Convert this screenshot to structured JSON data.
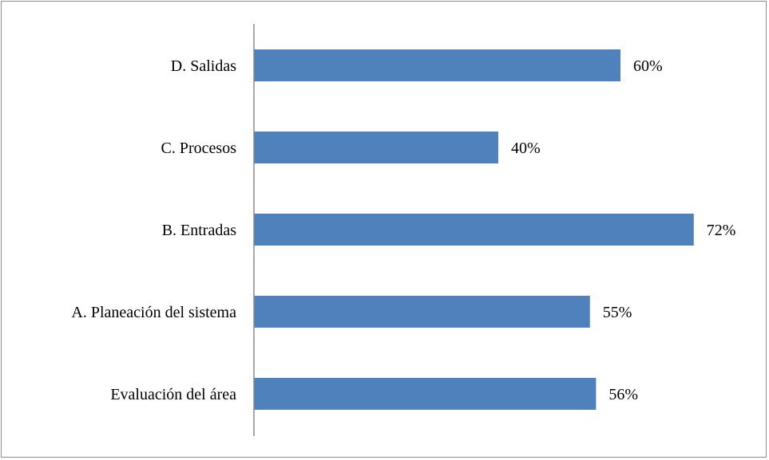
{
  "chart_data": {
    "type": "bar",
    "orientation": "horizontal",
    "categories": [
      "D. Salidas",
      "C. Procesos",
      "B. Entradas",
      "A. Planeación del sistema",
      "Evaluación del área"
    ],
    "values": [
      60,
      40,
      72,
      55,
      56
    ],
    "value_labels": [
      "60%",
      "40%",
      "72%",
      "55%",
      "56%"
    ],
    "title": "",
    "xlabel": "",
    "ylabel": "",
    "xlim": [
      0,
      100
    ],
    "grid": false,
    "legend": "none",
    "bar_color": "#4f81bd"
  }
}
